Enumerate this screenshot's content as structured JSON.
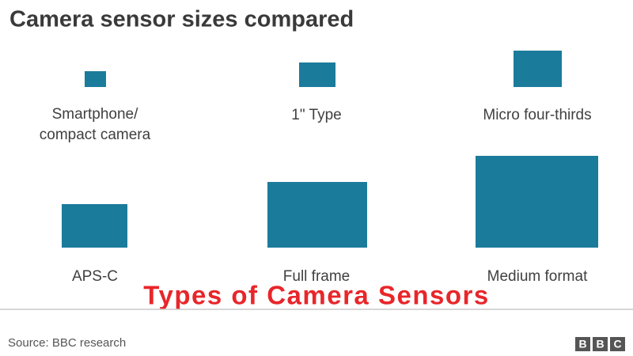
{
  "title": "Camera sensor sizes compared",
  "sensors": [
    {
      "label_lines": [
        "Smartphone/",
        "compact camera"
      ]
    },
    {
      "label_lines": [
        "1\" Type"
      ]
    },
    {
      "label_lines": [
        "Micro four-thirds"
      ]
    },
    {
      "label_lines": [
        "APS-C"
      ]
    },
    {
      "label_lines": [
        "Full frame"
      ]
    },
    {
      "label_lines": [
        "Medium format"
      ]
    }
  ],
  "caption": "Types of Camera Sensors",
  "source": "Source: BBC research",
  "logo": [
    "B",
    "B",
    "C"
  ]
}
